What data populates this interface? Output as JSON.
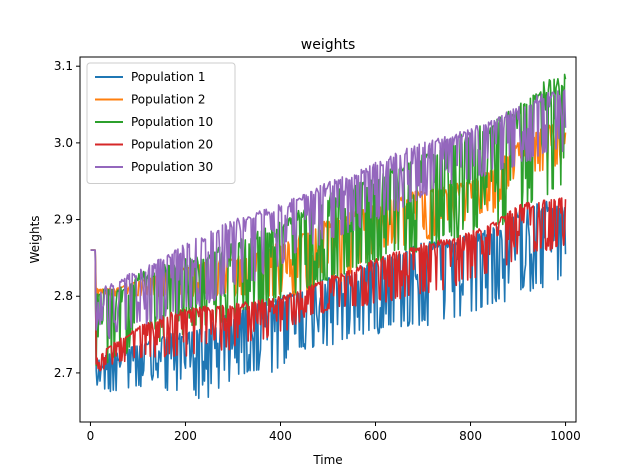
{
  "chart_data": {
    "type": "line",
    "title": "weights",
    "xlabel": "Time",
    "ylabel": "Weights",
    "xlim": [
      -22,
      1022
    ],
    "ylim": [
      2.636,
      3.112
    ],
    "xticks": [
      0,
      200,
      400,
      600,
      800,
      1000
    ],
    "xtick_labels": [
      "0",
      "200",
      "400",
      "600",
      "800",
      "1000"
    ],
    "yticks": [
      2.7,
      2.8,
      2.9,
      3.0,
      3.1
    ],
    "ytick_labels": [
      "2.7",
      "2.8",
      "2.9",
      "3.0",
      "3.1"
    ],
    "grid": false,
    "legend_position": "top-left",
    "series": [
      {
        "name": "Population 1",
        "color": "#1f77b4",
        "upper": [
          [
            0,
            2.86
          ],
          [
            10,
            2.86
          ],
          [
            12,
            2.72
          ],
          [
            50,
            2.73
          ],
          [
            100,
            2.74
          ],
          [
            150,
            2.75
          ],
          [
            200,
            2.755
          ],
          [
            250,
            2.765
          ],
          [
            300,
            2.78
          ],
          [
            350,
            2.79
          ],
          [
            400,
            2.8
          ],
          [
            420,
            2.805
          ],
          [
            450,
            2.81
          ],
          [
            500,
            2.825
          ],
          [
            550,
            2.835
          ],
          [
            600,
            2.85
          ],
          [
            650,
            2.86
          ],
          [
            700,
            2.87
          ],
          [
            750,
            2.875
          ],
          [
            800,
            2.88
          ],
          [
            850,
            2.89
          ],
          [
            880,
            2.9
          ],
          [
            900,
            2.915
          ],
          [
            950,
            2.925
          ],
          [
            1000,
            2.92
          ]
        ],
        "lower": [
          [
            0,
            2.86
          ],
          [
            10,
            2.86
          ],
          [
            12,
            2.675
          ],
          [
            50,
            2.675
          ],
          [
            100,
            2.68
          ],
          [
            150,
            2.675
          ],
          [
            200,
            2.675
          ],
          [
            250,
            2.66
          ],
          [
            300,
            2.69
          ],
          [
            350,
            2.7
          ],
          [
            400,
            2.7
          ],
          [
            420,
            2.73
          ],
          [
            450,
            2.73
          ],
          [
            500,
            2.735
          ],
          [
            550,
            2.745
          ],
          [
            600,
            2.75
          ],
          [
            650,
            2.76
          ],
          [
            700,
            2.76
          ],
          [
            750,
            2.77
          ],
          [
            800,
            2.775
          ],
          [
            850,
            2.79
          ],
          [
            880,
            2.79
          ],
          [
            900,
            2.8
          ],
          [
            950,
            2.81
          ],
          [
            1000,
            2.82
          ]
        ]
      },
      {
        "name": "Population 2",
        "color": "#ff7f0e",
        "upper": [
          [
            0,
            2.86
          ],
          [
            10,
            2.86
          ],
          [
            12,
            2.81
          ],
          [
            50,
            2.81
          ],
          [
            100,
            2.82
          ],
          [
            200,
            2.84
          ],
          [
            300,
            2.85
          ],
          [
            400,
            2.87
          ],
          [
            500,
            2.9
          ],
          [
            600,
            2.92
          ],
          [
            700,
            2.94
          ],
          [
            800,
            2.95
          ],
          [
            850,
            2.97
          ],
          [
            900,
            3.0
          ],
          [
            950,
            3.02
          ],
          [
            1000,
            3.035
          ]
        ],
        "lower": [
          [
            0,
            2.86
          ],
          [
            10,
            2.86
          ],
          [
            12,
            2.8
          ],
          [
            50,
            2.8
          ],
          [
            100,
            2.8
          ],
          [
            200,
            2.8
          ],
          [
            300,
            2.8
          ],
          [
            400,
            2.8
          ],
          [
            500,
            2.8
          ],
          [
            600,
            2.86
          ],
          [
            700,
            2.87
          ],
          [
            800,
            2.9
          ],
          [
            850,
            2.91
          ],
          [
            900,
            2.96
          ],
          [
            950,
            2.96
          ],
          [
            1000,
            2.97
          ]
        ]
      },
      {
        "name": "Population 10",
        "color": "#2ca02c",
        "upper": [
          [
            0,
            2.86
          ],
          [
            10,
            2.86
          ],
          [
            12,
            2.81
          ],
          [
            50,
            2.81
          ],
          [
            100,
            2.83
          ],
          [
            200,
            2.85
          ],
          [
            300,
            2.87
          ],
          [
            400,
            2.9
          ],
          [
            500,
            2.935
          ],
          [
            600,
            2.96
          ],
          [
            700,
            2.99
          ],
          [
            800,
            3.02
          ],
          [
            850,
            3.03
          ],
          [
            900,
            3.05
          ],
          [
            950,
            3.08
          ],
          [
            1000,
            3.09
          ]
        ],
        "lower": [
          [
            0,
            2.86
          ],
          [
            10,
            2.86
          ],
          [
            12,
            2.7
          ],
          [
            50,
            2.72
          ],
          [
            100,
            2.73
          ],
          [
            200,
            2.75
          ],
          [
            300,
            2.77
          ],
          [
            400,
            2.79
          ],
          [
            500,
            2.82
          ],
          [
            600,
            2.84
          ],
          [
            700,
            2.86
          ],
          [
            800,
            2.88
          ],
          [
            850,
            2.89
          ],
          [
            900,
            2.9
          ],
          [
            950,
            2.92
          ],
          [
            1000,
            2.95
          ]
        ]
      },
      {
        "name": "Population 20",
        "color": "#d62728",
        "upper": [
          [
            0,
            2.86
          ],
          [
            10,
            2.86
          ],
          [
            12,
            2.72
          ],
          [
            50,
            2.74
          ],
          [
            100,
            2.76
          ],
          [
            150,
            2.775
          ],
          [
            200,
            2.785
          ],
          [
            300,
            2.79
          ],
          [
            400,
            2.8
          ],
          [
            450,
            2.81
          ],
          [
            500,
            2.825
          ],
          [
            550,
            2.835
          ],
          [
            600,
            2.85
          ],
          [
            650,
            2.86
          ],
          [
            700,
            2.87
          ],
          [
            750,
            2.875
          ],
          [
            800,
            2.885
          ],
          [
            850,
            2.9
          ],
          [
            880,
            2.91
          ],
          [
            900,
            2.92
          ],
          [
            950,
            2.925
          ],
          [
            1000,
            2.93
          ]
        ],
        "lower": [
          [
            0,
            2.86
          ],
          [
            10,
            2.86
          ],
          [
            12,
            2.7
          ],
          [
            50,
            2.71
          ],
          [
            100,
            2.72
          ],
          [
            200,
            2.72
          ],
          [
            300,
            2.73
          ],
          [
            400,
            2.75
          ],
          [
            450,
            2.77
          ],
          [
            500,
            2.78
          ],
          [
            600,
            2.79
          ],
          [
            700,
            2.8
          ],
          [
            800,
            2.82
          ],
          [
            850,
            2.83
          ],
          [
            900,
            2.85
          ],
          [
            950,
            2.86
          ],
          [
            1000,
            2.86
          ]
        ]
      },
      {
        "name": "Population 30",
        "color": "#9467bd",
        "upper": [
          [
            0,
            2.86
          ],
          [
            10,
            2.86
          ],
          [
            12,
            2.81
          ],
          [
            50,
            2.82
          ],
          [
            100,
            2.835
          ],
          [
            150,
            2.85
          ],
          [
            200,
            2.87
          ],
          [
            250,
            2.885
          ],
          [
            300,
            2.9
          ],
          [
            350,
            2.91
          ],
          [
            400,
            2.92
          ],
          [
            450,
            2.935
          ],
          [
            500,
            2.95
          ],
          [
            550,
            2.96
          ],
          [
            600,
            2.975
          ],
          [
            650,
            2.99
          ],
          [
            700,
            3.0
          ],
          [
            750,
            3.01
          ],
          [
            800,
            3.02
          ],
          [
            850,
            3.03
          ],
          [
            900,
            3.05
          ],
          [
            950,
            3.065
          ],
          [
            1000,
            3.07
          ]
        ],
        "lower": [
          [
            0,
            2.86
          ],
          [
            10,
            2.86
          ],
          [
            12,
            2.73
          ],
          [
            50,
            2.75
          ],
          [
            100,
            2.76
          ],
          [
            150,
            2.77
          ],
          [
            200,
            2.78
          ],
          [
            250,
            2.79
          ],
          [
            300,
            2.81
          ],
          [
            350,
            2.82
          ],
          [
            400,
            2.84
          ],
          [
            450,
            2.86
          ],
          [
            500,
            2.87
          ],
          [
            550,
            2.88
          ],
          [
            600,
            2.9
          ],
          [
            650,
            2.91
          ],
          [
            700,
            2.93
          ],
          [
            750,
            2.94
          ],
          [
            800,
            2.95
          ],
          [
            850,
            2.96
          ],
          [
            900,
            2.97
          ],
          [
            950,
            2.98
          ],
          [
            1000,
            2.99
          ]
        ]
      }
    ]
  }
}
